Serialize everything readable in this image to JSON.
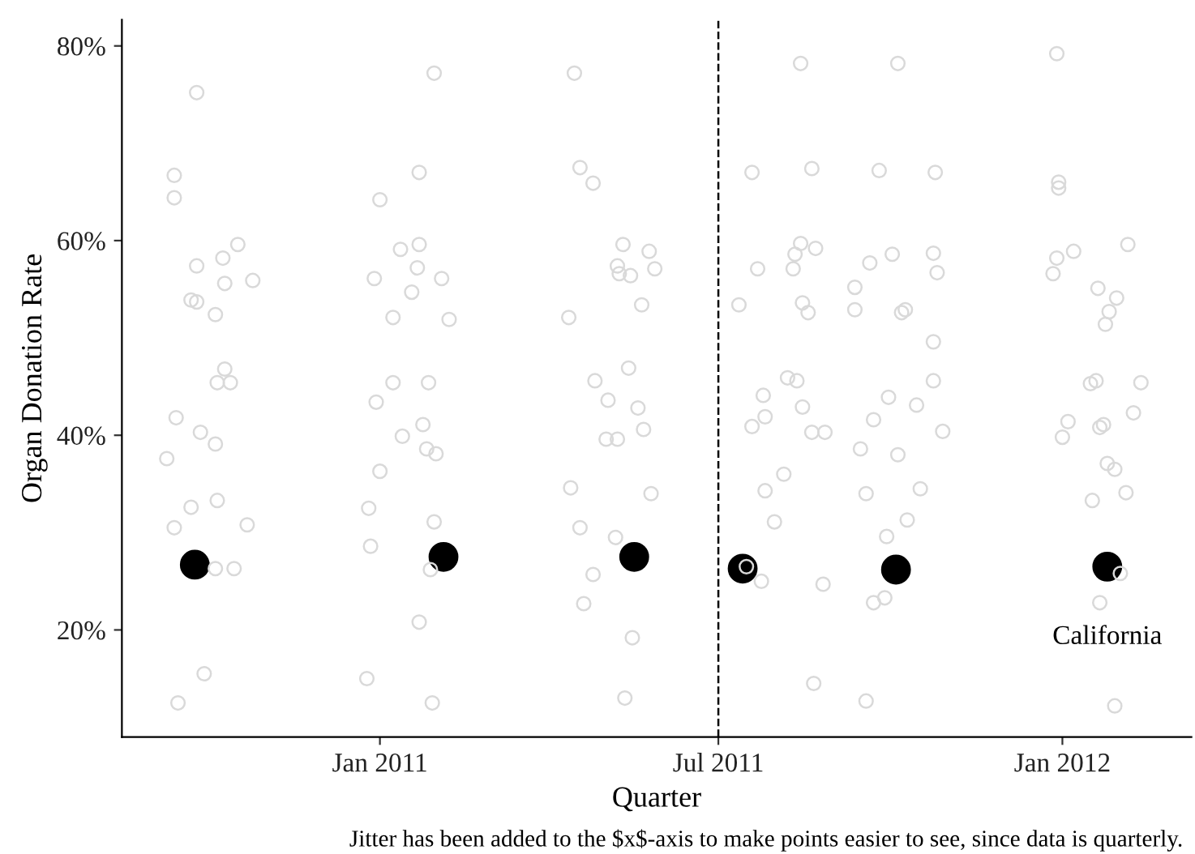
{
  "chart_data": {
    "type": "scatter",
    "xlabel": "Quarter",
    "ylabel": "Organ Donation Rate",
    "marker": "circle",
    "annotations": [
      "Jitter has been added to the $x$-axis to make points easier to see, since data is quarterly."
    ],
    "xlim": [
      "2010-08-16",
      "2012-03-10"
    ],
    "ylim": [
      9,
      82.7
    ],
    "xticks": [
      {
        "value": "2011-01-01",
        "label": "Jan 2011"
      },
      {
        "value": "2011-07-01",
        "label": "Jul 2011"
      },
      {
        "value": "2012-01-01",
        "label": "Jan 2012"
      }
    ],
    "yticks": [
      {
        "value": 20,
        "label": "20%"
      },
      {
        "value": 40,
        "label": "40%"
      },
      {
        "value": 60,
        "label": "60%"
      },
      {
        "value": 80,
        "label": "80%"
      }
    ],
    "ref_lines": [
      {
        "axis": "x",
        "value": "2011-07-01",
        "color": "#000000",
        "line_style": "dashed"
      }
    ],
    "series": [
      {
        "color": "#d9d9d9",
        "x": [
          "2010-09-25",
          "2010-09-13",
          "2010-09-13",
          "2010-10-17",
          "2010-10-09",
          "2010-09-25",
          "2010-10-25",
          "2010-10-10",
          "2010-09-22",
          "2010-09-25",
          "2010-10-05",
          "2010-10-10",
          "2010-10-06",
          "2010-10-13",
          "2010-09-14",
          "2010-09-27",
          "2010-10-05",
          "2010-09-09",
          "2010-09-22",
          "2010-10-06",
          "2010-09-13",
          "2010-10-22",
          "2010-10-05",
          "2010-10-15",
          "2010-09-29",
          "2010-09-15",
          "2011-01-30",
          "2011-01-22",
          "2011-01-01",
          "2011-01-22",
          "2011-01-12",
          "2011-01-21",
          "2010-12-29",
          "2011-02-03",
          "2011-01-18",
          "2011-01-08",
          "2011-02-07",
          "2011-01-08",
          "2011-01-27",
          "2010-12-30",
          "2011-01-24",
          "2011-01-13",
          "2011-01-26",
          "2011-01-31",
          "2011-01-01",
          "2010-12-26",
          "2011-01-30",
          "2010-12-27",
          "2011-01-28",
          "2011-01-22",
          "2010-12-25",
          "2011-01-29",
          "2011-04-15",
          "2011-04-18",
          "2011-04-25",
          "2011-05-11",
          "2011-05-25",
          "2011-05-08",
          "2011-05-09",
          "2011-05-15",
          "2011-05-28",
          "2011-05-21",
          "2011-04-12",
          "2011-05-14",
          "2011-04-26",
          "2011-05-03",
          "2011-05-19",
          "2011-05-22",
          "2011-05-02",
          "2011-05-08",
          "2011-04-13",
          "2011-05-26",
          "2011-04-18",
          "2011-05-07",
          "2011-04-25",
          "2011-04-20",
          "2011-05-16",
          "2011-05-12",
          "2011-08-14",
          "2011-07-19",
          "2011-08-20",
          "2011-08-14",
          "2011-08-22",
          "2011-08-11",
          "2011-07-22",
          "2011-08-10",
          "2011-07-12",
          "2011-08-15",
          "2011-08-18",
          "2011-08-07",
          "2011-08-12",
          "2011-07-25",
          "2011-08-15",
          "2011-07-26",
          "2011-07-19",
          "2011-08-20",
          "2011-08-27",
          "2011-08-05",
          "2011-07-26",
          "2011-07-31",
          "2011-07-16",
          "2011-07-24",
          "2011-08-26",
          "2011-08-21",
          "2011-10-05",
          "2011-09-25",
          "2011-10-25",
          "2011-10-02",
          "2011-09-20",
          "2011-10-24",
          "2011-10-26",
          "2011-09-12",
          "2011-09-12",
          "2011-10-07",
          "2011-10-09",
          "2011-10-24",
          "2011-10-24",
          "2011-09-30",
          "2011-10-15",
          "2011-09-22",
          "2011-10-29",
          "2011-09-15",
          "2011-10-05",
          "2011-09-18",
          "2011-10-17",
          "2011-10-10",
          "2011-09-29",
          "2011-09-22",
          "2011-09-28",
          "2011-09-18",
          "2011-12-29",
          "2011-12-30",
          "2011-12-30",
          "2012-02-05",
          "2012-01-07",
          "2011-12-29",
          "2011-12-27",
          "2012-01-20",
          "2012-01-30",
          "2012-01-26",
          "2012-01-24",
          "2012-01-16",
          "2012-01-19",
          "2012-02-12",
          "2012-01-04",
          "2012-01-01",
          "2012-02-08",
          "2012-01-21",
          "2012-01-23",
          "2012-01-25",
          "2012-01-29",
          "2012-01-17",
          "2012-02-04",
          "2012-02-01",
          "2012-01-21",
          "2012-01-29"
        ],
        "values": [
          75.2,
          66.7,
          64.4,
          59.6,
          58.2,
          57.4,
          55.9,
          55.6,
          53.9,
          53.7,
          52.4,
          46.8,
          45.4,
          45.4,
          41.8,
          40.3,
          39.1,
          37.6,
          32.6,
          33.3,
          30.5,
          30.8,
          26.3,
          26.3,
          15.5,
          12.5,
          77.2,
          67.0,
          64.2,
          59.6,
          59.1,
          57.2,
          56.1,
          56.1,
          54.7,
          52.1,
          51.9,
          45.4,
          45.4,
          43.4,
          41.1,
          39.9,
          38.6,
          38.1,
          36.3,
          32.5,
          31.1,
          28.6,
          26.2,
          20.8,
          15.0,
          12.5,
          77.2,
          67.5,
          65.9,
          59.6,
          58.9,
          57.4,
          56.6,
          56.4,
          57.1,
          53.4,
          52.1,
          46.9,
          45.6,
          43.6,
          42.8,
          40.6,
          39.6,
          39.6,
          34.6,
          34.0,
          30.5,
          29.5,
          25.7,
          22.7,
          19.2,
          13.0,
          78.2,
          67.0,
          67.4,
          59.7,
          59.2,
          58.6,
          57.1,
          57.1,
          53.4,
          53.6,
          52.6,
          45.9,
          45.6,
          44.1,
          42.9,
          41.9,
          40.9,
          40.3,
          40.3,
          36.0,
          34.3,
          31.1,
          26.5,
          25.0,
          24.7,
          14.5,
          78.2,
          67.2,
          67.0,
          58.6,
          57.7,
          58.7,
          56.7,
          55.2,
          52.9,
          52.6,
          52.9,
          49.6,
          45.6,
          43.9,
          43.1,
          41.6,
          40.4,
          38.6,
          38.0,
          34.0,
          34.5,
          31.3,
          29.6,
          22.8,
          23.3,
          12.7,
          79.2,
          66.0,
          65.4,
          59.6,
          58.9,
          58.2,
          56.6,
          55.1,
          54.1,
          52.7,
          51.4,
          45.3,
          45.6,
          45.4,
          41.4,
          39.8,
          42.3,
          40.8,
          41.1,
          37.1,
          36.5,
          33.3,
          34.1,
          25.8,
          22.8,
          12.2
        ]
      },
      {
        "name": "California",
        "color": "#000000",
        "x": [
          "2010-09-24",
          "2011-02-04",
          "2011-05-17",
          "2011-07-14",
          "2011-10-04",
          "2012-01-25"
        ],
        "values": [
          26.7,
          27.5,
          27.5,
          26.3,
          26.2,
          26.5
        ]
      }
    ]
  }
}
